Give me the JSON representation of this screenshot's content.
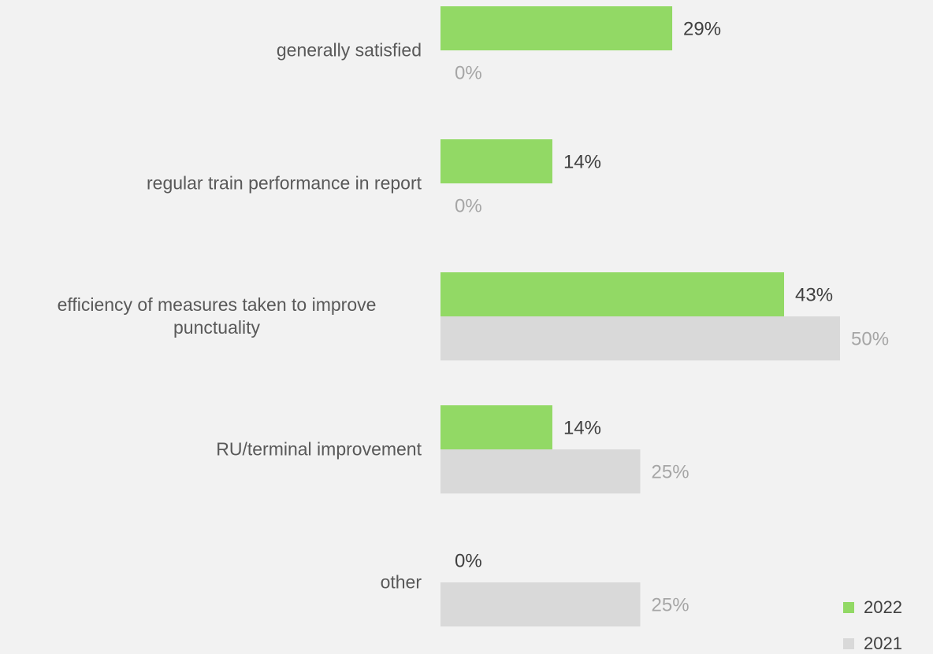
{
  "chart_data": {
    "type": "bar",
    "orientation": "horizontal",
    "categories": [
      "generally satisfied",
      "regular train performance in report",
      "efficiency of measures taken to improve punctuality",
      "RU/terminal improvement",
      "other"
    ],
    "series": [
      {
        "name": "2022",
        "color": "#92d965",
        "values": [
          29,
          14,
          43,
          14,
          0
        ],
        "value_labels": [
          "29%",
          "14%",
          "43%",
          "14%",
          "0%"
        ]
      },
      {
        "name": "2021",
        "color": "#d9d9d9",
        "values": [
          0,
          0,
          50,
          25,
          25
        ],
        "value_labels": [
          "0%",
          "0%",
          "50%",
          "25%",
          "25%"
        ]
      }
    ],
    "xlim": [
      0,
      50
    ],
    "legend": "lower right"
  }
}
